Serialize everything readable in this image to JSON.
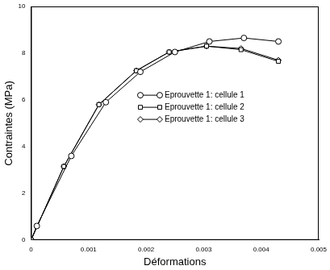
{
  "chart_data": {
    "type": "line",
    "x_label": "Déformations",
    "y_label": "Contraintes (MPa)",
    "xlim": [
      0,
      0.005
    ],
    "xticks": [
      0,
      0.001,
      0.002,
      0.003,
      0.004,
      0.005
    ],
    "ylim": [
      0,
      10
    ],
    "yticks": [
      0,
      2,
      4,
      6,
      8,
      10
    ],
    "grid": false,
    "legend": "right",
    "series": [
      {
        "name": "Eprouvette 1: cellule 1",
        "color": "#000000",
        "marker": "circle",
        "x": [
          0,
          0.0001,
          0.0007,
          0.0013,
          0.0019,
          0.0025,
          0.0031,
          0.0037,
          0.0043
        ],
        "values": [
          0,
          0.6,
          3.6,
          5.9,
          7.2,
          8.05,
          8.5,
          8.65,
          8.5
        ]
      },
      {
        "name": "Eprouvette 1: cellule 2",
        "color": "#000000",
        "marker": "square",
        "x": [
          0,
          0.00057,
          0.00118,
          0.00183,
          0.0024,
          0.00305,
          0.00365,
          0.0043
        ],
        "values": [
          0,
          3.15,
          5.8,
          7.25,
          8.05,
          8.3,
          8.15,
          7.65
        ]
      },
      {
        "name": "Eprouvette 1: cellule 3",
        "color": "#000000",
        "marker": "diamond",
        "x": [
          0,
          0.00057,
          0.00118,
          0.00183,
          0.0024,
          0.00305,
          0.00365,
          0.0043
        ],
        "values": [
          0,
          3.15,
          5.8,
          7.25,
          8.05,
          8.3,
          8.2,
          7.7
        ]
      }
    ]
  }
}
